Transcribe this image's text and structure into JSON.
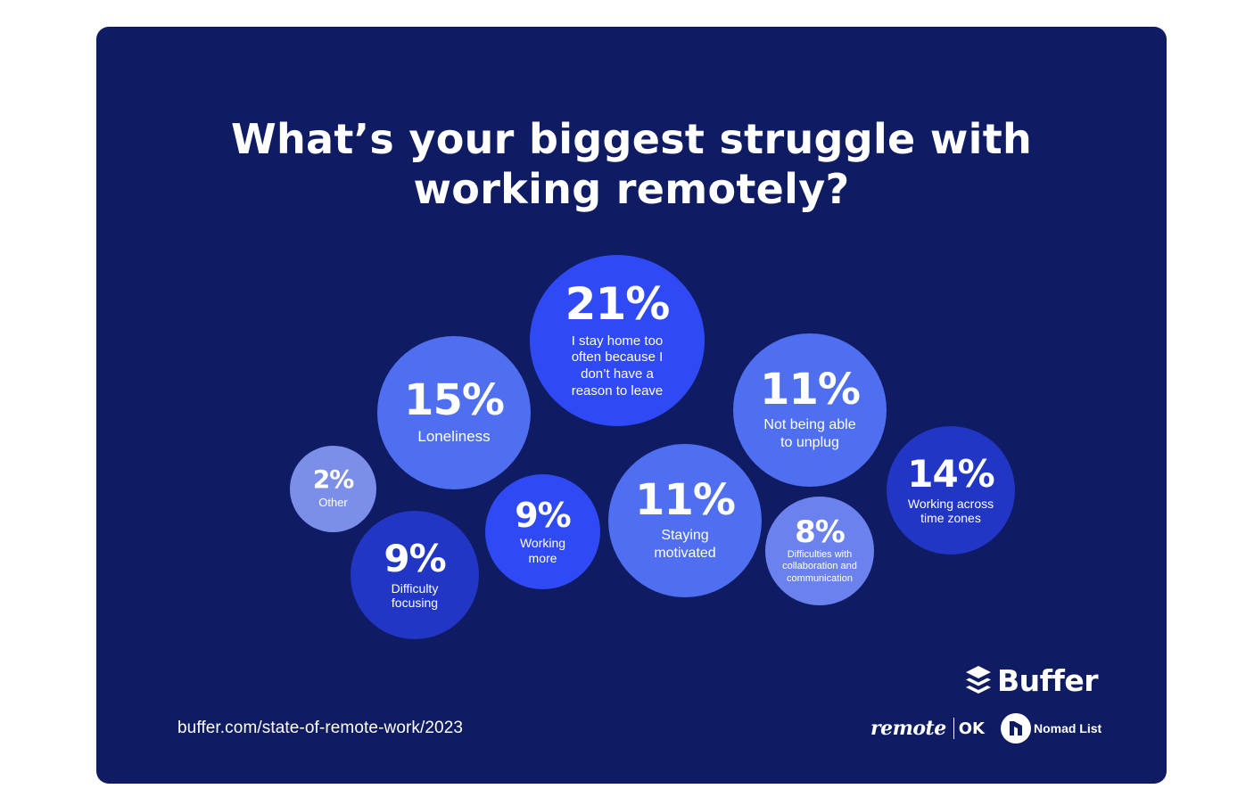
{
  "title_lines": [
    "What’s your biggest struggle with",
    "working remotely?"
  ],
  "chart_data": {
    "type": "bubble",
    "title": "What’s your biggest struggle with working remotely?",
    "items": [
      {
        "value": "21%",
        "label": "I stay home too often because I don’t have a reason to leave",
        "color": "#2f49f5"
      },
      {
        "value": "15%",
        "label": "Loneliness",
        "color": "#4f6ff0"
      },
      {
        "value": "11%",
        "label": "Not being able to unplug",
        "color": "#4f6ff0"
      },
      {
        "value": "14%",
        "label": "Working across time zones",
        "color": "#2136c5"
      },
      {
        "value": "2%",
        "label": "Other",
        "color": "#7c8fe8"
      },
      {
        "value": "9%",
        "label": "Difficulty focusing",
        "color": "#2136c5"
      },
      {
        "value": "9%",
        "label": "Working more",
        "color": "#2f49f5"
      },
      {
        "value": "11%",
        "label": "Staying motivated",
        "color": "#4f6ff0"
      },
      {
        "value": "8%",
        "label": "Difficulties with collaboration and communication",
        "color": "#6b82ee"
      }
    ]
  },
  "footer": {
    "source_url": "buffer.com/state-of-remote-work/2023",
    "buffer_logo": "Buffer",
    "remote_logo": "remote",
    "ok_logo": "OK",
    "nomad_logo": "Nomad List"
  },
  "colors": {
    "background": "#0f1b63",
    "text": "#ffffff"
  },
  "icons": [
    "buffer-stack-icon",
    "nomad-list-icon"
  ]
}
